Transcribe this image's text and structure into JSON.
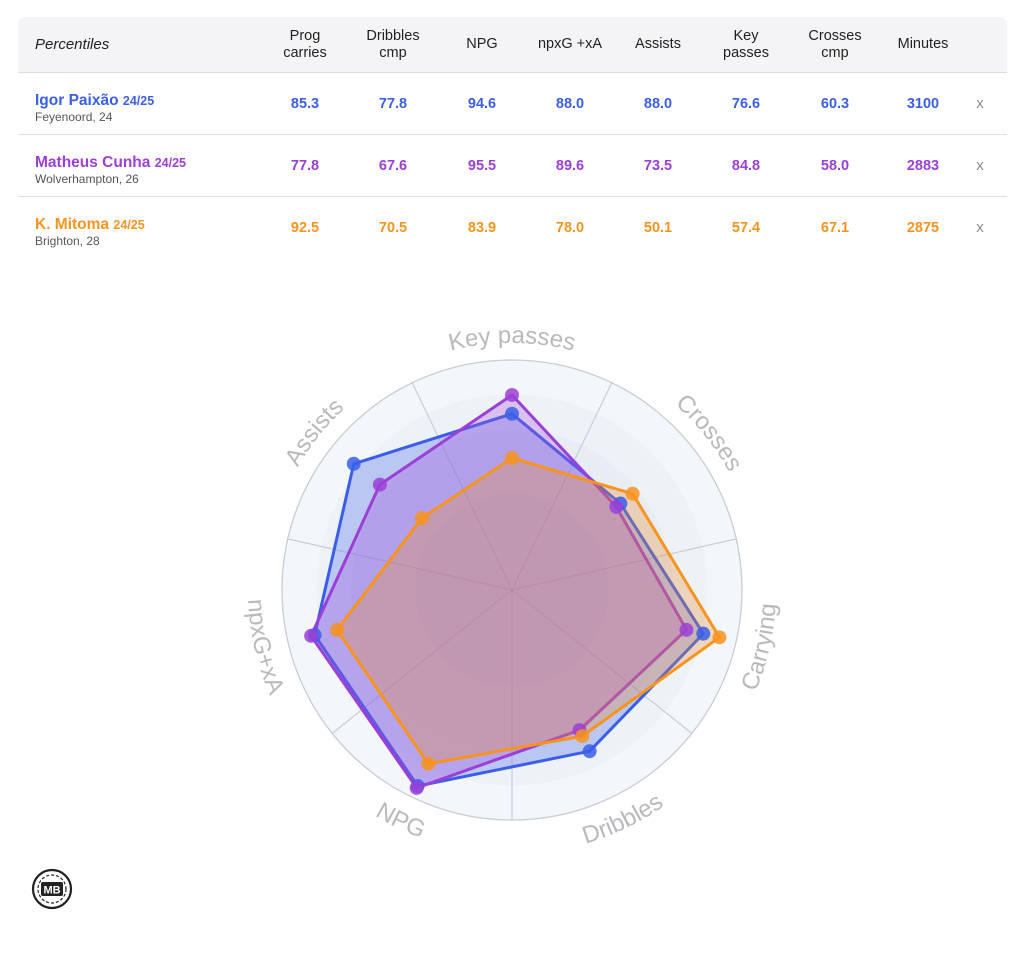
{
  "table": {
    "first_header": "Percentiles",
    "columns": [
      {
        "l1": "Prog",
        "l2": "carries"
      },
      {
        "l1": "Dribbles",
        "l2": "cmp"
      },
      {
        "l1": "NPG",
        "l2": ""
      },
      {
        "l1": "npxG +xA",
        "l2": ""
      },
      {
        "l1": "Assists",
        "l2": ""
      },
      {
        "l1": "Key",
        "l2": "passes"
      },
      {
        "l1": "Crosses",
        "l2": "cmp"
      },
      {
        "l1": "Minutes",
        "l2": ""
      }
    ],
    "remove_label": "x",
    "players": [
      {
        "name": "Igor Paixão",
        "season": "24/25",
        "club": "Feyenoord, 24",
        "color": "#3b5ee8",
        "values": [
          "85.3",
          "77.8",
          "94.6",
          "88.0",
          "88.0",
          "76.6",
          "60.3",
          "3100"
        ]
      },
      {
        "name": "Matheus Cunha",
        "season": "24/25",
        "club": "Wolverhampton, 26",
        "color": "#9b3fd6",
        "values": [
          "77.8",
          "67.6",
          "95.5",
          "89.6",
          "73.5",
          "84.8",
          "58.0",
          "2883"
        ]
      },
      {
        "name": "K. Mitoma",
        "season": "24/25",
        "club": "Brighton, 28",
        "color": "#f7931e",
        "values": [
          "92.5",
          "70.5",
          "83.9",
          "78.0",
          "50.1",
          "57.4",
          "67.1",
          "2875"
        ]
      }
    ]
  },
  "chart_data": {
    "type": "radar",
    "axes": [
      "Key passes",
      "Crosses",
      "Carrying",
      "Dribbles",
      "NPG",
      "npxG+xA",
      "Assists"
    ],
    "range": [
      0,
      100
    ],
    "series": [
      {
        "name": "Igor Paixão",
        "color": "#3b5ee8",
        "values": [
          76.6,
          60.3,
          85.3,
          77.8,
          94.6,
          88.0,
          88.0
        ]
      },
      {
        "name": "Matheus Cunha",
        "color": "#9b3fd6",
        "values": [
          84.8,
          58.0,
          77.8,
          67.6,
          95.5,
          89.6,
          73.5
        ]
      },
      {
        "name": "K. Mitoma",
        "color": "#f7931e",
        "values": [
          57.4,
          67.1,
          92.5,
          70.5,
          83.9,
          78.0,
          50.1
        ]
      }
    ]
  },
  "logo": {
    "text": "MB"
  }
}
